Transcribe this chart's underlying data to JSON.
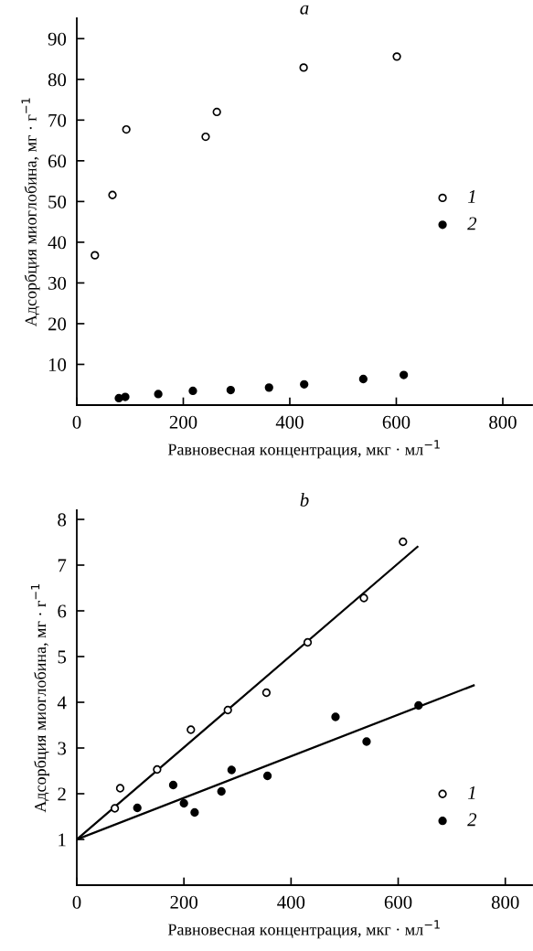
{
  "chart_data": [
    {
      "type": "scatter",
      "title": "a",
      "xlabel": "Равновесная концентрация, мкг · мл$^{−1}$",
      "ylabel": "Адсорбция миоглобина, мг · г$^{−1}$",
      "xlim": [
        0,
        855
      ],
      "xticks": [
        0,
        200,
        400,
        600,
        800
      ],
      "ylim": [
        0,
        95
      ],
      "yticks": [
        10,
        20,
        30,
        40,
        50,
        60,
        70,
        80,
        90
      ],
      "legend": "right",
      "grid": false,
      "series": [
        {
          "name": "1",
          "marker": "circle",
          "color": "#ffffff",
          "x": [
            34,
            67,
            93,
            242,
            263,
            426,
            601
          ],
          "values": [
            36.8,
            51.6,
            67.7,
            65.9,
            72.0,
            82.9,
            85.6
          ]
        },
        {
          "name": "2",
          "marker": "circle",
          "color": "#000000",
          "x": [
            79,
            91,
            153,
            218,
            289,
            361,
            427,
            538,
            614
          ],
          "values": [
            1.7,
            2.0,
            2.7,
            3.5,
            3.7,
            4.3,
            5.1,
            6.4,
            7.4
          ]
        }
      ]
    },
    {
      "type": "scatter",
      "title": "b",
      "xlabel": "Равновесная концентрация, мкг · мл$^{−1}$",
      "ylabel": "Адсорбция миоглобина, мг · г$^{−1}$",
      "xlim": [
        0,
        850
      ],
      "xticks": [
        0,
        200,
        400,
        600,
        800
      ],
      "ylim": [
        0,
        8.2
      ],
      "yticks": [
        1,
        2,
        3,
        4,
        5,
        6,
        7,
        8
      ],
      "legend": "bottom right",
      "grid": false,
      "series": [
        {
          "name": "1",
          "marker": "circle",
          "color": "#ffffff",
          "x": [
            71,
            81,
            150,
            213,
            282,
            354,
            431,
            536,
            609
          ],
          "values": [
            1.68,
            2.12,
            2.53,
            3.4,
            3.83,
            4.21,
            5.31,
            6.28,
            7.51
          ]
        },
        {
          "name": "2",
          "marker": "circle",
          "color": "#000000",
          "x": [
            113,
            180,
            200,
            220,
            270,
            289,
            356,
            483,
            541,
            638
          ],
          "values": [
            1.69,
            2.19,
            1.79,
            1.59,
            2.05,
            2.52,
            2.39,
            3.68,
            3.14,
            3.93
          ]
        },
        {
          "type": "line",
          "color": "#000000",
          "line_style": "solid",
          "x": [
            0,
            636
          ],
          "values": [
            1.0,
            7.4
          ]
        },
        {
          "type": "line",
          "color": "#000000",
          "line_style": "solid",
          "x": [
            0,
            741
          ],
          "values": [
            1.0,
            4.37
          ]
        }
      ]
    }
  ]
}
